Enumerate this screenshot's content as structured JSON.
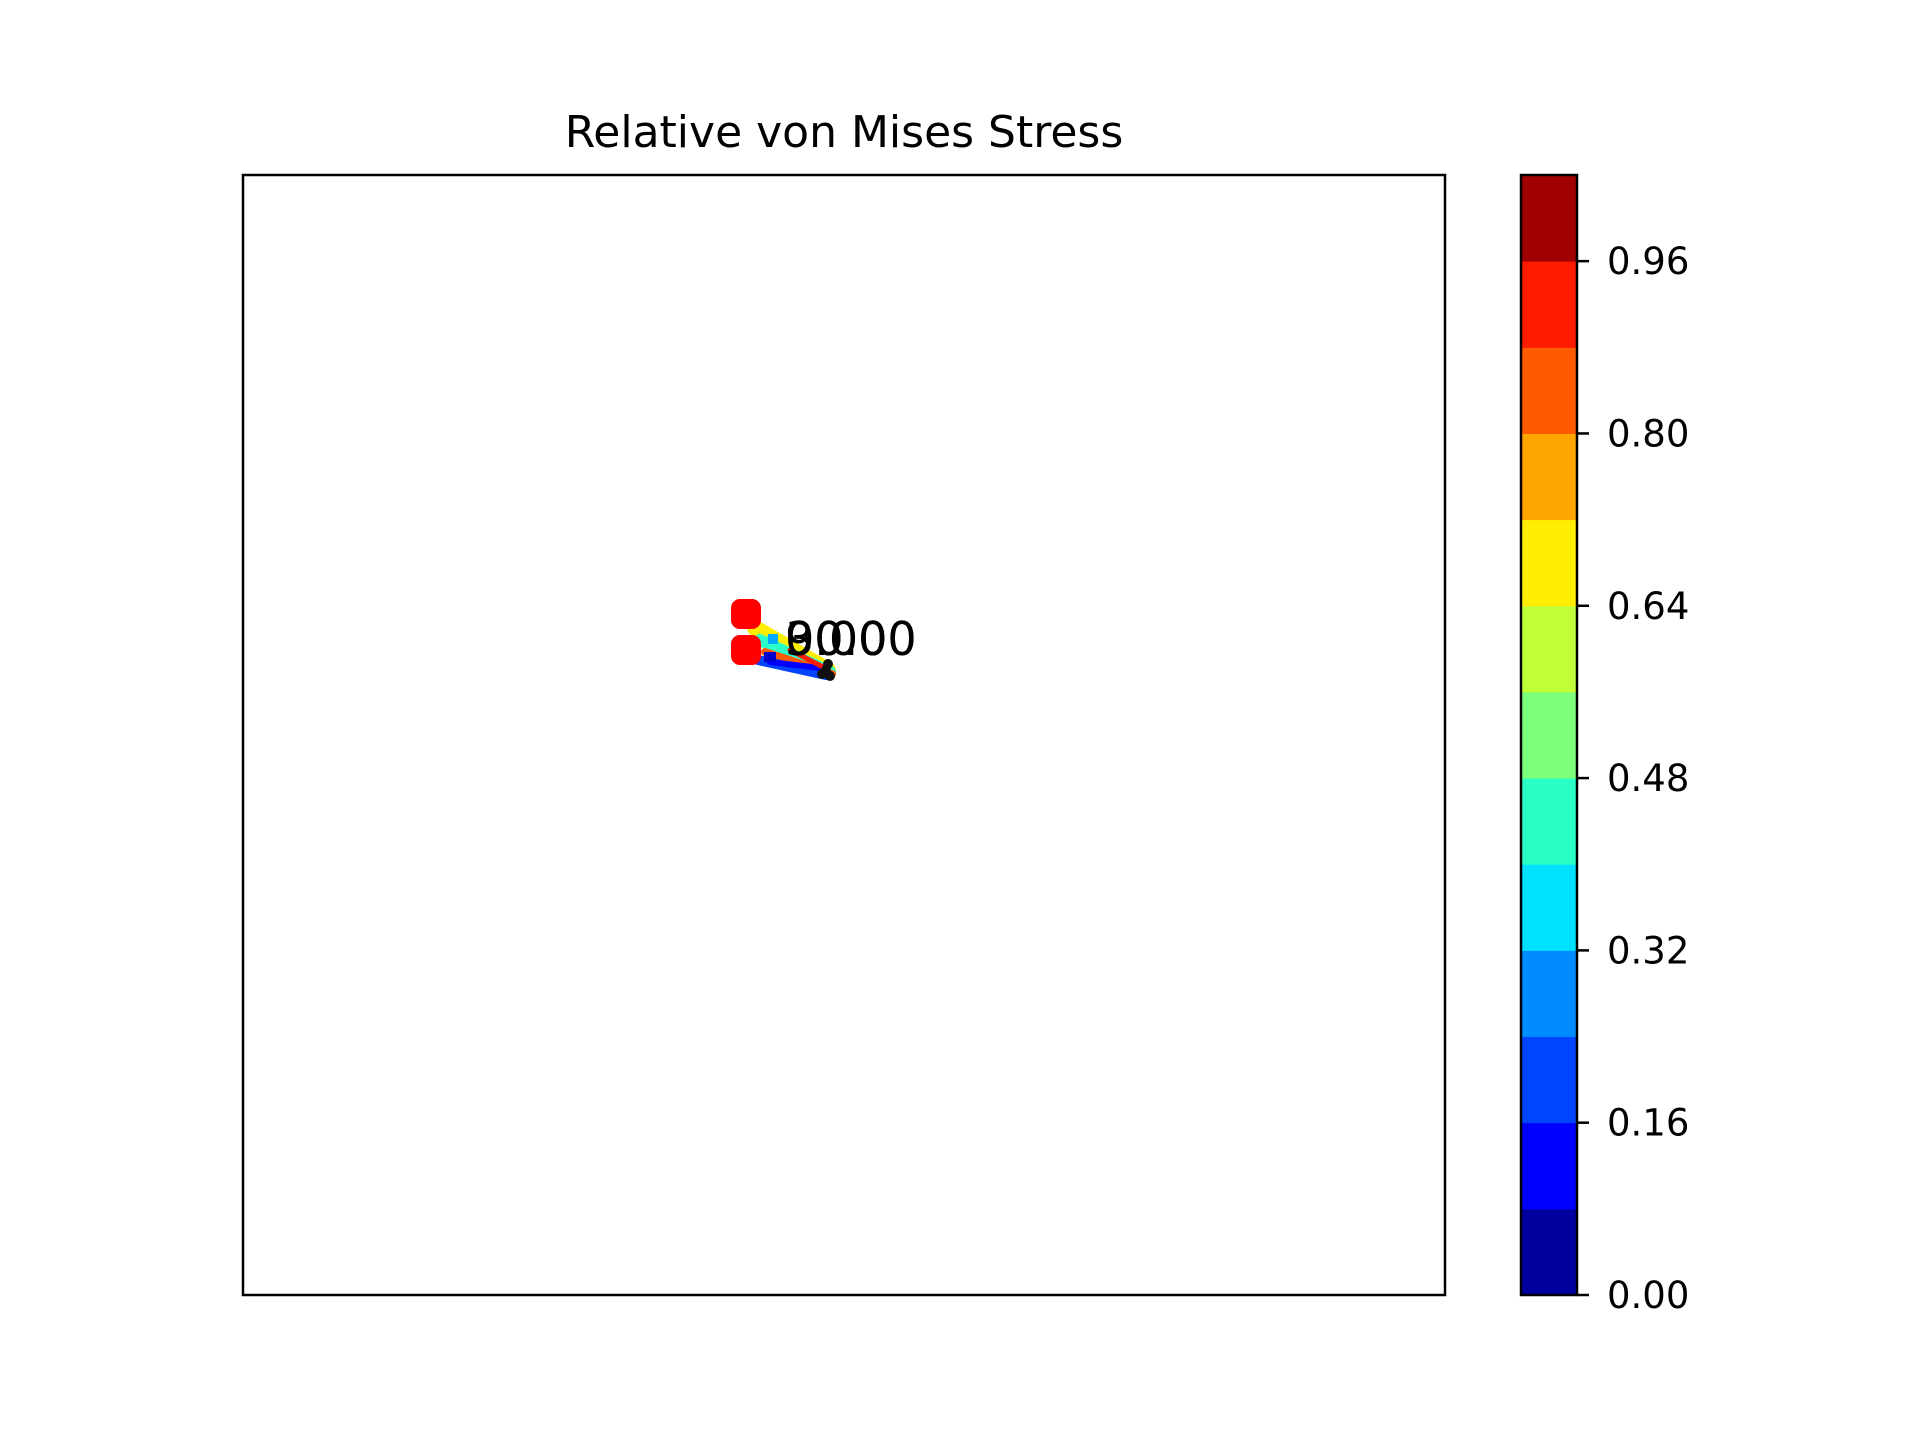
{
  "chart_data": {
    "type": "contour",
    "title": "Relative von Mises Stress",
    "xlabel": "",
    "ylabel": "",
    "axes_ticks_visible": false,
    "grid": false,
    "colorbar": {
      "colormap": "jet",
      "range": [
        0.0,
        1.04
      ],
      "levels": 13,
      "ticks": [
        "0.00",
        "0.16",
        "0.32",
        "0.48",
        "0.64",
        "0.80",
        "0.96"
      ],
      "tick_values": [
        0.0,
        0.16,
        0.32,
        0.48,
        0.64,
        0.8,
        0.96
      ],
      "band_colors": [
        "#00009f",
        "#0000ff",
        "#0044ff",
        "#008cff",
        "#00e0ff",
        "#2affc8",
        "#7cff7a",
        "#c0ff37",
        "#ffee00",
        "#ffa500",
        "#ff5a00",
        "#ff1a00",
        "#a00000"
      ]
    },
    "support_markers": {
      "color": "#ff0000",
      "count": 2
    },
    "annotations": [
      {
        "text": "30.00"
      },
      {
        "text": "90.00"
      },
      {
        "text": "0.00"
      }
    ]
  }
}
